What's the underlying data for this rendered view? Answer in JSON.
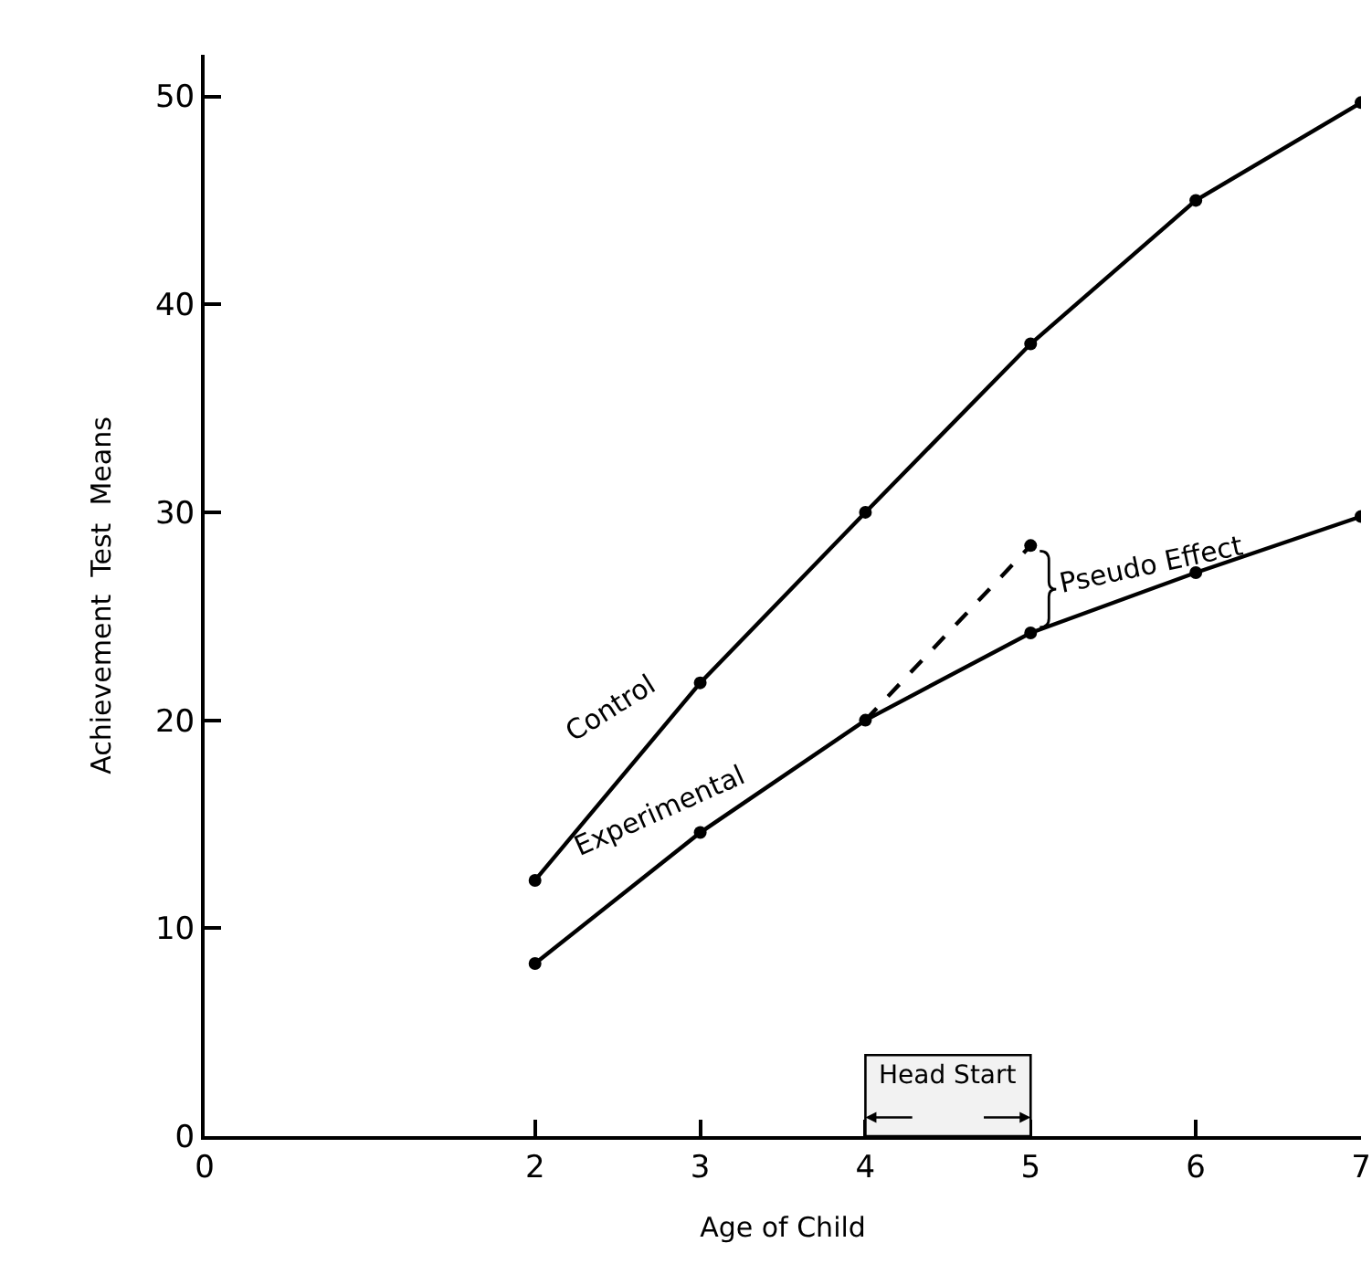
{
  "chart_data": {
    "type": "line",
    "xlabel": "Age of Child",
    "ylabel": "Achievement  Test  Means",
    "x": [
      2,
      3,
      4,
      5,
      6,
      7
    ],
    "series": [
      {
        "name": "Control",
        "color": "#000000",
        "values": [
          12.3,
          21.8,
          30.0,
          38.1,
          45.0,
          49.7
        ]
      },
      {
        "name": "Experimental",
        "color": "#000000",
        "values": [
          8.3,
          14.6,
          20.0,
          24.2,
          27.1,
          29.8
        ]
      },
      {
        "color": "#000000",
        "x": [
          4,
          5
        ],
        "values": [
          20.0,
          28.4
        ],
        "line_style": "dashed"
      }
    ],
    "xlim": [
      0,
      7
    ],
    "xticks": [
      0,
      2,
      3,
      4,
      5,
      6,
      7
    ],
    "ylim": [
      0,
      52
    ],
    "yticks": [
      0,
      10,
      20,
      30,
      40,
      50
    ],
    "annotations": [
      "Pseudo Effect"
    ],
    "bands": [
      {
        "axis": "x",
        "from": 4,
        "to": 5,
        "label": "Head Start",
        "color": "#f2f2f2"
      }
    ],
    "marker": "circle",
    "line_style": "solid",
    "grid": false,
    "legend": false
  }
}
